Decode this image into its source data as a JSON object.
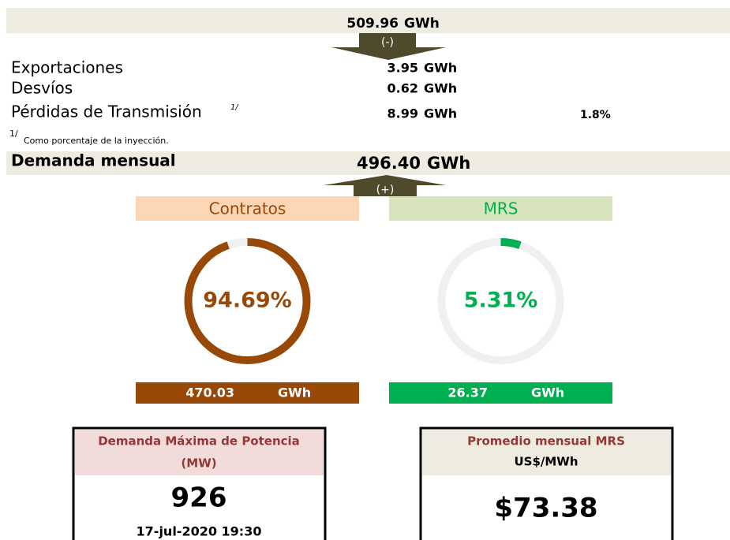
{
  "inyeccion": {
    "value": "509.96",
    "unit": "GWh"
  },
  "arrow_down": "(-)",
  "rows": [
    {
      "label": "Exportaciones",
      "value": "3.95",
      "unit": "GWh"
    },
    {
      "label": "Desvíos",
      "value": "0.62",
      "unit": "GWh"
    },
    {
      "label": "Pérdidas de Transmisión",
      "note": "1/",
      "value": "8.99",
      "unit": "GWh",
      "percent": "1.8%"
    }
  ],
  "footnote": {
    "mark": "1/",
    "text": "Como porcentaje de la inyección."
  },
  "demanda": {
    "label": "Demanda mensual",
    "value": "496.40",
    "unit": "GWh"
  },
  "arrow_up": "(+)",
  "gauges": [
    {
      "title": "Contratos",
      "percent": 94.69,
      "percent_label": "94.69%",
      "energy": "470.03",
      "unit": "GWh",
      "color": "#984807",
      "header_bg": "#fcd5b5"
    },
    {
      "title": "MRS",
      "percent": 5.31,
      "percent_label": "5.31%",
      "energy": "26.37",
      "unit": "GWh",
      "color": "#00b050",
      "header_bg": "#d7e4bc"
    }
  ],
  "cards": [
    {
      "title": "Demanda Máxima de Potencia",
      "subtitle": "(MW)",
      "value": "926",
      "date": "17-jul-2020 19:30"
    },
    {
      "title": "Promedio mensual MRS",
      "subtitle": "US$/MWh",
      "value": "$73.38"
    }
  ]
}
